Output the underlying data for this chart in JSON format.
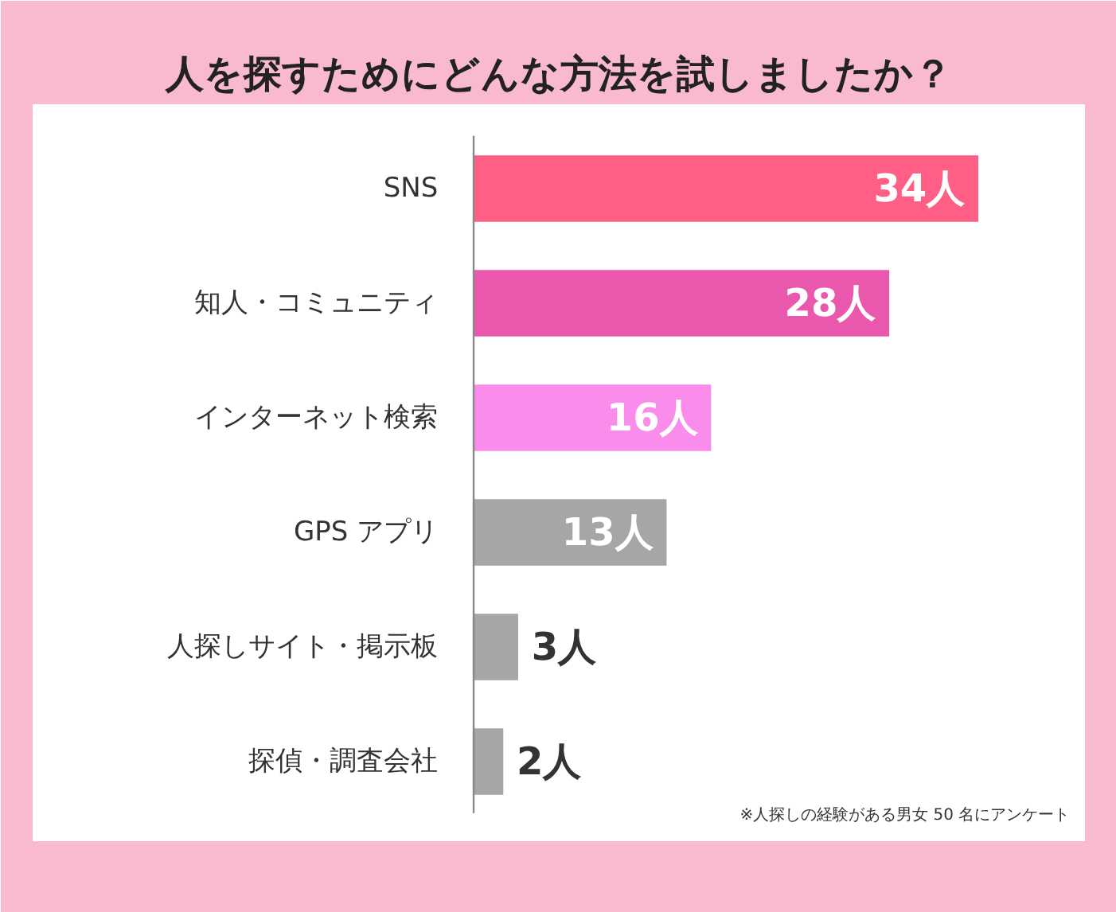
{
  "chart_data": {
    "type": "bar",
    "orientation": "horizontal",
    "title": "人を探すためにどんな方法を試しましたか？",
    "categories": [
      "SNS",
      "知人・コミュニティ",
      "インターネット検索",
      "GPS アプリ",
      "人探しサイト・掲示板",
      "探偵・調査会社"
    ],
    "values": [
      34,
      28,
      16,
      13,
      3,
      2
    ],
    "colors": [
      "#ff5f85",
      "#ea58ae",
      "#fa8cec",
      "#a6a6a6",
      "#a6a6a6",
      "#a6a6a6"
    ],
    "value_labels": [
      "34人",
      "28人",
      "16人",
      "13人",
      "3人",
      "2人"
    ],
    "annotations": [
      "※人探しの経験がある男女 50 名にアンケート"
    ]
  }
}
